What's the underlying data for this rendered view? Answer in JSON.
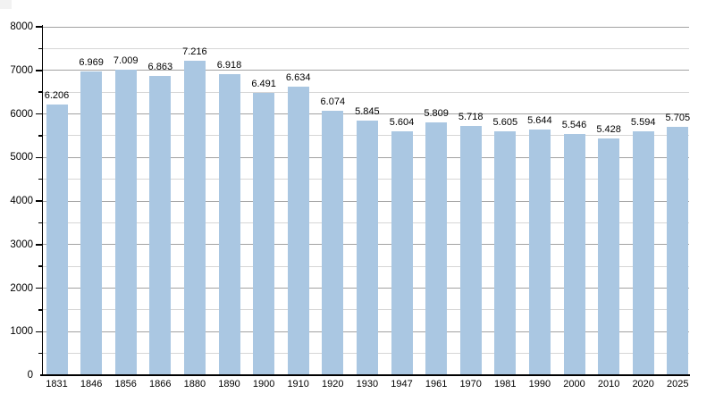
{
  "page": {
    "background": "#ffffff"
  },
  "chart_data": {
    "type": "bar",
    "title": "",
    "xlabel": "",
    "ylabel": "",
    "categories": [
      "1831",
      "1846",
      "1856",
      "1866",
      "1880",
      "1890",
      "1900",
      "1910",
      "1920",
      "1930",
      "1947",
      "1961",
      "1970",
      "1981",
      "1990",
      "2000",
      "2010",
      "2020",
      "2025"
    ],
    "values": [
      6206,
      6969,
      7009,
      6863,
      7216,
      6918,
      6491,
      6634,
      6074,
      5845,
      5604,
      5809,
      5718,
      5605,
      5644,
      5546,
      5428,
      5594,
      5705
    ],
    "value_labels": [
      "6.206",
      "6.969",
      "7.009",
      "6.863",
      "7.216",
      "6.918",
      "6.491",
      "6.634",
      "6.074",
      "5.845",
      "5.604",
      "5.809",
      "5.718",
      "5.605",
      "5.644",
      "5.546",
      "5.428",
      "5.594",
      "5.705"
    ],
    "ylim": [
      0,
      8000
    ],
    "y_major_tick_labels": [
      "0",
      "1000",
      "2000",
      "3000",
      "4000",
      "5000",
      "6000",
      "7000",
      "8000"
    ],
    "y_major_step": 1000,
    "y_minor_step": 500,
    "grid": "horizontal major+minor",
    "legend": "none",
    "colors": {
      "bar_fill": "#aac7e2",
      "major_grid": "#a2a2a2",
      "minor_grid": "#d6d6d6",
      "axis": "#000000",
      "text": "#000000"
    }
  }
}
